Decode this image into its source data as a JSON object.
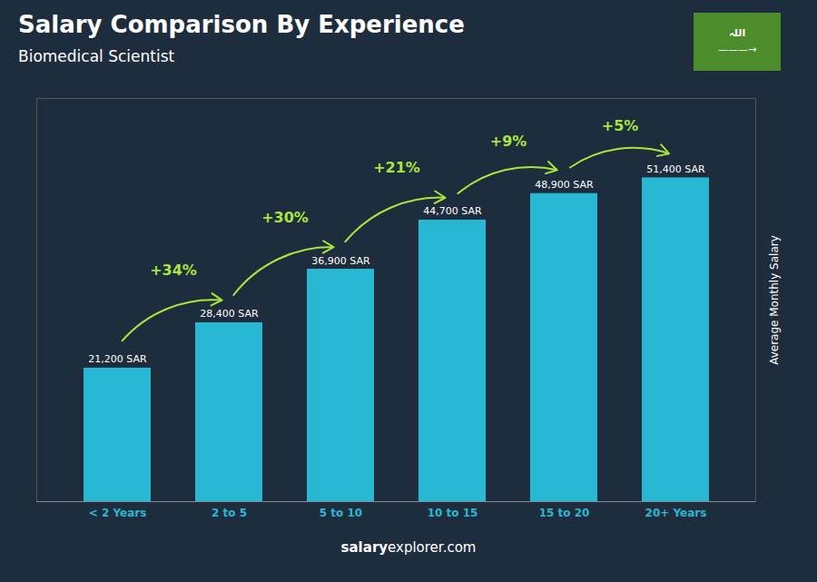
{
  "chart_data": {
    "type": "bar",
    "title": "Salary Comparison By Experience",
    "subtitle": "Biomedical Scientist",
    "ylabel": "Average Monthly Salary",
    "categories": [
      "< 2 Years",
      "2 to 5",
      "5 to 10",
      "10 to 15",
      "15 to 20",
      "20+ Years"
    ],
    "values": [
      21200,
      28400,
      36900,
      44700,
      48900,
      51400
    ],
    "value_labels": [
      "21,200 SAR",
      "28,400 SAR",
      "36,900 SAR",
      "44,700 SAR",
      "48,900 SAR",
      "51,400 SAR"
    ],
    "data_labels": true,
    "color": "#29b8d4",
    "ylim": [
      0,
      64000
    ],
    "yticks": [],
    "tick_labels": "x",
    "grid": false,
    "changes": {
      "labels": [
        "+34%",
        "+30%",
        "+21%",
        "+9%",
        "+5%"
      ],
      "color": "#a8e63d"
    },
    "footer": [
      "salary",
      "explorer.com"
    ],
    "flag": [
      "اللہ",
      "———→"
    ]
  }
}
